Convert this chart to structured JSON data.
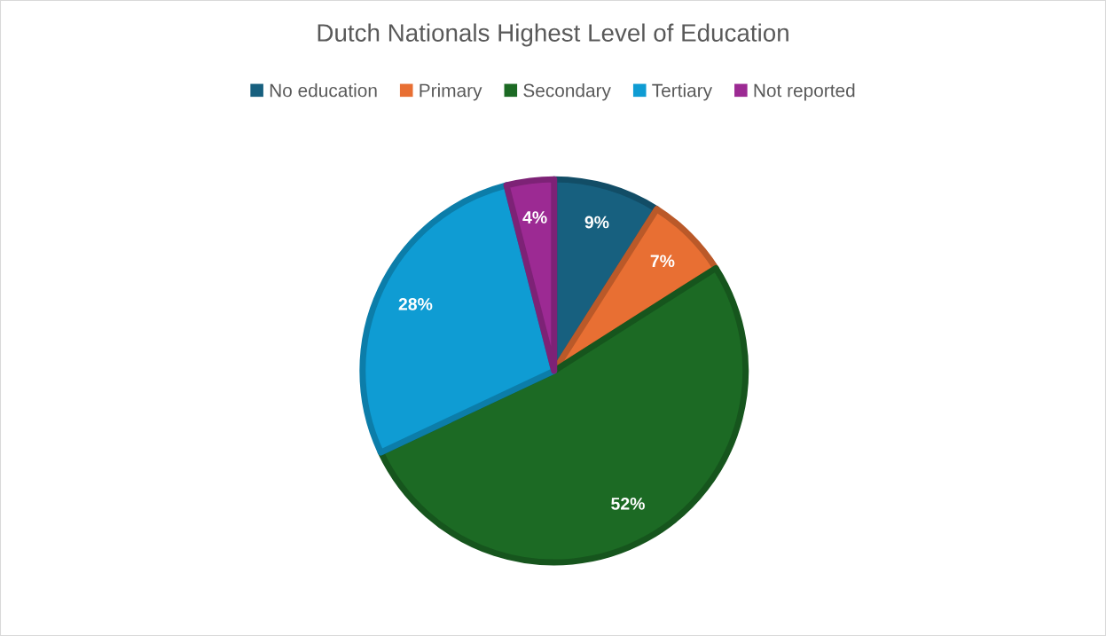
{
  "chart_data": {
    "type": "pie",
    "title": "Dutch Nationals Highest Level of Education",
    "categories": [
      "No education",
      "Primary",
      "Secondary",
      "Tertiary",
      "Not reported"
    ],
    "values": [
      9,
      7,
      52,
      28,
      4
    ],
    "colors": [
      "#17607f",
      "#e86f33",
      "#1c6a24",
      "#0f9cd3",
      "#9c2a93"
    ],
    "value_labels": [
      "9%",
      "7%",
      "52%",
      "28%",
      "4%"
    ],
    "legend": "top"
  }
}
